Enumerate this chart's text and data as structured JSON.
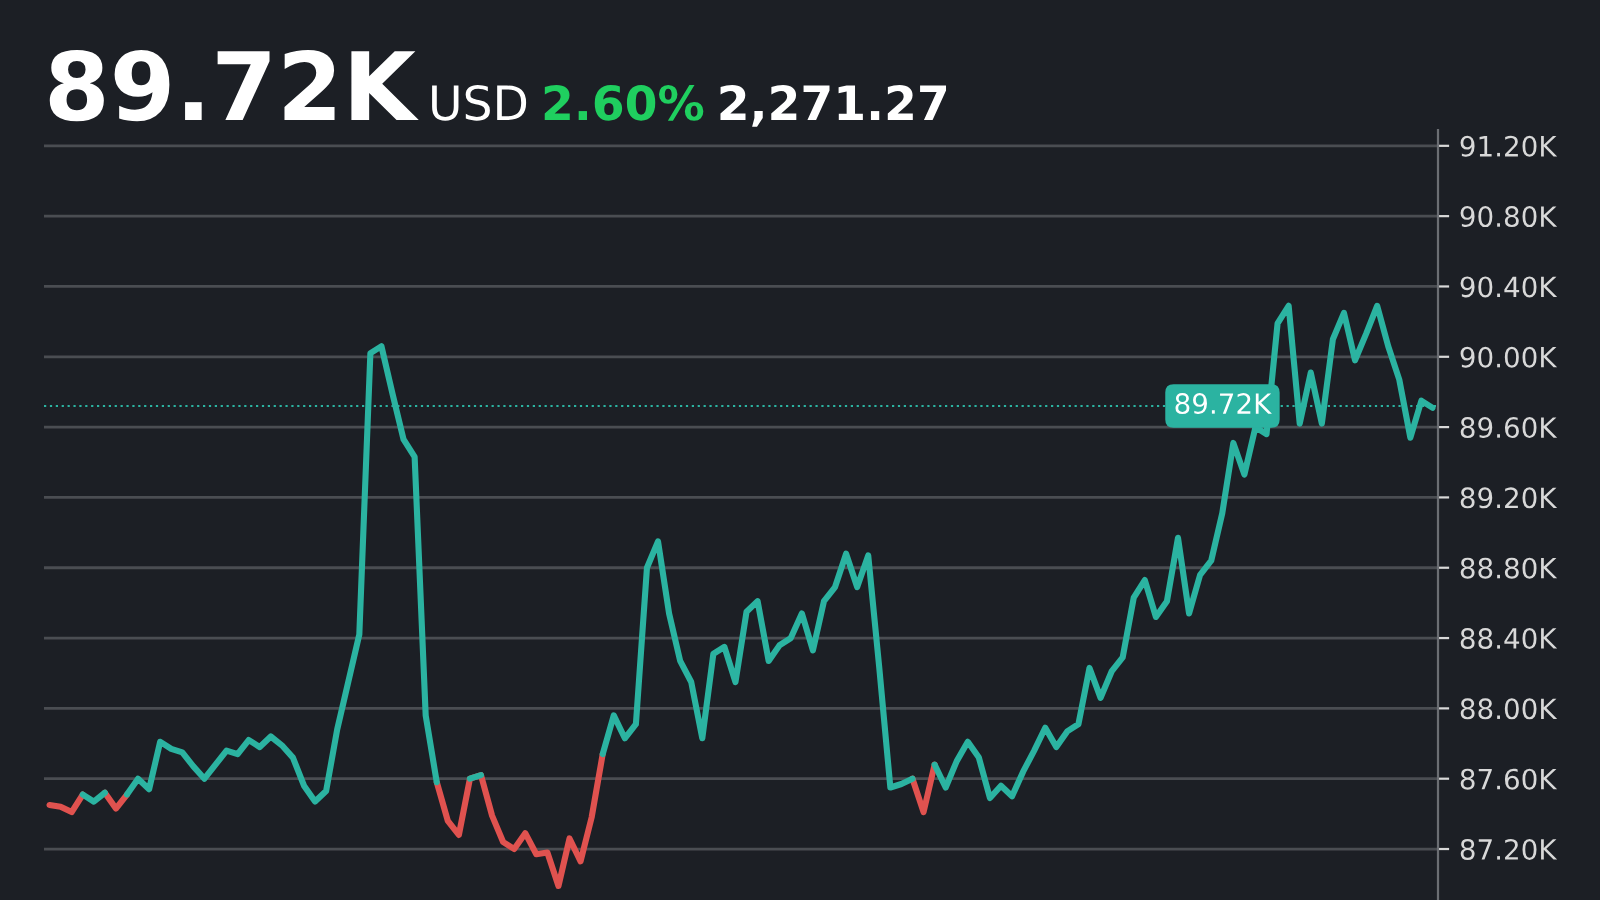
{
  "chart_data": {
    "type": "line",
    "title": "89.72K",
    "subtitle": "USD",
    "annotations": [
      "2.60%",
      "2,271.27"
    ],
    "categories": [
      null,
      null,
      null,
      null,
      null,
      null,
      null,
      null,
      null,
      null,
      null,
      null,
      null,
      null,
      null,
      null,
      null,
      null,
      null,
      null,
      null,
      null,
      null,
      null,
      null,
      null,
      null,
      null,
      null,
      null,
      null,
      null,
      null,
      null,
      null,
      null,
      null,
      null,
      null,
      null,
      null,
      null,
      null,
      null,
      null,
      null,
      null,
      null,
      null,
      null,
      null,
      null,
      null,
      null,
      null,
      null,
      null,
      null,
      null,
      null,
      null,
      null,
      null,
      null,
      null,
      null,
      null,
      null,
      null,
      null,
      null,
      null,
      null,
      null,
      null,
      null,
      null,
      null,
      null,
      null,
      null,
      null,
      null,
      null,
      null,
      null,
      null,
      null,
      null,
      null,
      null,
      null,
      null,
      null,
      null,
      null,
      null,
      null,
      null,
      null,
      null,
      null,
      null,
      null,
      null,
      null,
      null,
      null,
      null,
      null,
      null,
      null,
      null,
      null,
      null,
      null,
      null,
      null,
      null,
      null,
      null,
      null,
      null,
      null,
      null,
      null
    ],
    "series": [
      {
        "color": "#2bb3a1",
        "values": [
          null,
          null,
          null,
          87.51,
          87.47,
          87.52,
          null,
          87.51,
          87.6,
          87.54,
          87.81,
          87.77,
          87.75,
          87.67,
          87.6,
          87.68,
          87.76,
          87.74,
          87.82,
          87.78,
          87.84,
          87.79,
          87.72,
          87.56,
          87.47,
          87.53,
          87.88,
          88.15,
          88.42,
          90.02,
          90.06,
          89.79,
          89.53,
          89.43,
          87.96,
          87.58,
          null,
          null,
          87.6,
          87.62,
          null,
          null,
          null,
          null,
          null,
          null,
          null,
          null,
          null,
          null,
          87.74,
          87.96,
          87.83,
          87.91,
          88.8,
          88.95,
          88.54,
          88.27,
          88.15,
          87.83,
          88.31,
          88.35,
          88.15,
          88.55,
          88.61,
          88.27,
          88.36,
          88.4,
          88.54,
          88.33,
          88.61,
          88.69,
          88.88,
          88.69,
          88.87,
          88.23,
          87.55,
          87.57,
          87.6,
          null,
          87.68,
          87.55,
          87.7,
          87.81,
          87.72,
          87.49,
          87.56,
          87.5,
          87.64,
          87.76,
          87.89,
          87.78,
          87.87,
          87.91,
          88.23,
          88.06,
          88.21,
          88.29,
          88.63,
          88.73,
          88.52,
          88.61,
          88.97,
          88.54,
          88.76,
          88.84,
          89.11,
          89.51,
          89.33,
          89.6,
          89.56,
          90.19,
          90.29,
          89.62,
          89.91,
          89.62,
          90.1,
          90.25,
          89.98,
          90.13,
          90.29,
          90.06,
          89.87,
          89.54,
          89.75,
          89.71
        ]
      },
      {
        "color": "#e0524f",
        "values": [
          87.45,
          87.44,
          87.41,
          87.51,
          null,
          87.52,
          87.43,
          87.51,
          null,
          null,
          null,
          null,
          null,
          null,
          null,
          null,
          null,
          null,
          null,
          null,
          null,
          null,
          null,
          null,
          null,
          null,
          null,
          null,
          null,
          null,
          null,
          null,
          null,
          null,
          null,
          87.58,
          87.36,
          87.28,
          87.6,
          87.62,
          87.39,
          87.24,
          87.2,
          87.29,
          87.17,
          87.18,
          86.99,
          87.26,
          87.13,
          87.38,
          87.74,
          null,
          null,
          null,
          null,
          null,
          null,
          null,
          null,
          null,
          null,
          null,
          null,
          null,
          null,
          null,
          null,
          null,
          null,
          null,
          null,
          null,
          null,
          null,
          null,
          null,
          null,
          null,
          87.6,
          87.41,
          87.68,
          null,
          null,
          null,
          null,
          null,
          null,
          null,
          null,
          null,
          null,
          null,
          null,
          null,
          null,
          null,
          null,
          null,
          null,
          null,
          null,
          null,
          null,
          null,
          null,
          null,
          null,
          null,
          null,
          null,
          null,
          null,
          null,
          null,
          null,
          null,
          null,
          null,
          null,
          null,
          null,
          null,
          null,
          null,
          null,
          null
        ]
      }
    ],
    "ylim": [
      86.91,
      91.29
    ],
    "yticks": [
      {
        "value": 87.2,
        "label": "87.20K"
      },
      {
        "value": 87.6,
        "label": "87.60K"
      },
      {
        "value": 88.0,
        "label": "88.00K"
      },
      {
        "value": 88.4,
        "label": "88.40K"
      },
      {
        "value": 88.8,
        "label": "88.80K"
      },
      {
        "value": 89.2,
        "label": "89.20K"
      },
      {
        "value": 89.6,
        "label": "89.60K"
      },
      {
        "value": 90.0,
        "label": "90.00K"
      },
      {
        "value": 90.4,
        "label": "90.40K"
      },
      {
        "value": 90.8,
        "label": "90.80K"
      },
      {
        "value": 91.2,
        "label": "91.20K"
      }
    ],
    "ref_lines": [
      {
        "axis": "y",
        "value": 89.72,
        "label": "89.72K",
        "color": "#2bb3a1",
        "line_style": "dotted"
      }
    ],
    "grid": "y",
    "legend": false,
    "marker": "none",
    "line_style": "solid"
  }
}
